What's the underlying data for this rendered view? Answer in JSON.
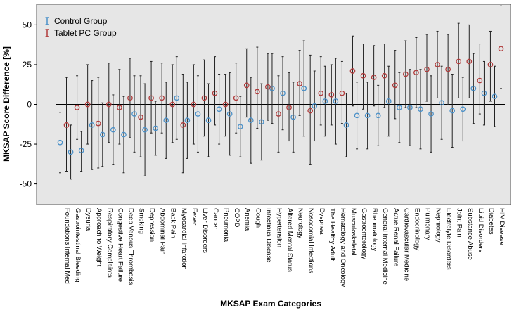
{
  "chart_data": {
    "type": "errorbar",
    "title": "",
    "xlabel": "MKSAP Exam Categories",
    "ylabel": "MKSAP Score Difference [%]",
    "ylim": [
      -63,
      63
    ],
    "yticks": [
      50,
      25,
      0,
      -25,
      -50
    ],
    "ytick_labels": [
      "50",
      "25",
      "0",
      "-25",
      "-50"
    ],
    "legend": [
      {
        "name": "Control Group",
        "color": "#4a90c8"
      },
      {
        "name": "Tablet PC Group",
        "color": "#b03a3a"
      }
    ],
    "legend_position": "top-left",
    "categories": [
      "Foundations Internal Med",
      "Gastrointestinal Bleeding",
      "Dysuria",
      "Approach to Weight",
      "Respiratory Complaints",
      "Congestive Heart Failure",
      "Deep Venous Thrombosis",
      "Smoking",
      "Depression",
      "Abdominal Pain",
      "Back Pain",
      "Myocardial Infarction",
      "Fever",
      "Liver Disorders",
      "Cancer",
      "Pneumonia",
      "COPD",
      "Anemia",
      "Cough",
      "Infectious Disease",
      "Hypertension",
      "Altered Mental Status",
      "Neurology",
      "Nosocomial Infections",
      "Dyspnea",
      "The Healthy Adult",
      "Hematology and Oncology",
      "Musculoskeletal",
      "Gastroenterology",
      "Rheumatology",
      "General Internal Medicine",
      "Actue Renal Failure",
      "Cardiovascular Medicine",
      "Endocrinology",
      "Pulmonary",
      "Nephrology",
      "Electrolyte Disorders",
      "Joint Pain",
      "Substance Abuse",
      "Lipid Disorders",
      "Diabetes",
      "HIV Disease"
    ],
    "series": [
      {
        "name": "Control Group",
        "mean": [
          -24,
          -30,
          -29,
          -13,
          -19,
          -16,
          -19,
          -6,
          -16,
          -15,
          -10,
          4,
          -10,
          -6,
          -10,
          -3,
          -6,
          -14,
          -10,
          -11,
          10,
          7,
          -8,
          10,
          -1,
          2,
          2,
          -13,
          -7,
          -7,
          -7,
          2,
          -2,
          -2,
          -3,
          -6,
          1,
          -4,
          -3,
          10,
          7,
          5
        ],
        "lower": [
          -43,
          -47,
          -42,
          -41,
          -39,
          -38,
          -43,
          -30,
          -45,
          -32,
          -34,
          -22,
          -34,
          -30,
          -33,
          -25,
          -32,
          -33,
          -37,
          -35,
          -12,
          -16,
          -30,
          -20,
          -23,
          -20,
          -25,
          -33,
          -28,
          -28,
          -26,
          -20,
          -24,
          -26,
          -28,
          -30,
          -22,
          -27,
          -23,
          -12,
          -13,
          -14
        ],
        "upper": [
          -5,
          -13,
          -17,
          15,
          1,
          6,
          5,
          18,
          13,
          2,
          14,
          30,
          14,
          18,
          13,
          19,
          20,
          5,
          17,
          13,
          32,
          30,
          14,
          40,
          21,
          24,
          29,
          7,
          14,
          14,
          12,
          24,
          20,
          22,
          22,
          18,
          24,
          19,
          17,
          32,
          27,
          24
        ]
      },
      {
        "name": "Tablet PC Group",
        "mean": [
          -13,
          -2,
          0,
          -12,
          0,
          -2,
          4,
          -8,
          4,
          4,
          0,
          -13,
          0,
          4,
          7,
          0,
          4,
          12,
          8,
          11,
          -6,
          -2,
          13,
          -4,
          7,
          6,
          7,
          21,
          18,
          17,
          18,
          12,
          19,
          20,
          22,
          25,
          22,
          27,
          27,
          15,
          25,
          35
        ],
        "lower": [
          -42,
          -22,
          -25,
          -40,
          -24,
          -25,
          -21,
          -33,
          -18,
          -18,
          -24,
          -43,
          -25,
          -20,
          -13,
          -20,
          -18,
          -8,
          -15,
          -10,
          -30,
          -23,
          -7,
          -38,
          -13,
          -13,
          -12,
          -1,
          -3,
          -1,
          -2,
          -9,
          -2,
          -2,
          2,
          4,
          0,
          4,
          4,
          -6,
          2,
          10
        ],
        "upper": [
          17,
          18,
          25,
          17,
          26,
          22,
          29,
          18,
          27,
          26,
          25,
          19,
          25,
          28,
          30,
          19,
          26,
          35,
          36,
          32,
          18,
          20,
          34,
          31,
          30,
          25,
          27,
          43,
          38,
          37,
          38,
          34,
          40,
          42,
          44,
          46,
          44,
          51,
          50,
          38,
          46,
          62
        ]
      }
    ]
  }
}
